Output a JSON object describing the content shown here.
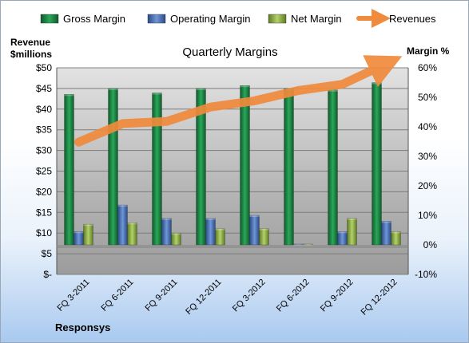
{
  "chart_data": {
    "type": "bar",
    "title": "Quarterly Margins",
    "company": "Responsys",
    "ylabel_left": "Revenue $millions",
    "ylabel_right": "Margin %",
    "categories": [
      "FQ 3-2011",
      "FQ 6-2011",
      "FQ 9-2011",
      "FQ 12-2011",
      "FQ 3-2012",
      "FQ 6-2012",
      "FQ 9-2012",
      "FQ 12-2012"
    ],
    "left_axis": {
      "min": 0,
      "max": 50,
      "step": 5,
      "ticks": [
        "$-",
        "$5",
        "$10",
        "$15",
        "$20",
        "$25",
        "$30",
        "$35",
        "$40",
        "$45",
        "$50"
      ]
    },
    "right_axis": {
      "min": -10,
      "max": 60,
      "step": 10,
      "ticks": [
        "-10%",
        "0%",
        "10%",
        "20%",
        "30%",
        "40%",
        "50%",
        "60%"
      ]
    },
    "series": [
      {
        "name": "Gross Margin",
        "axis": "right",
        "color": "#1e8a44",
        "values": [
          51,
          53,
          51.5,
          53,
          54,
          53,
          52.5,
          55
        ]
      },
      {
        "name": "Operating Margin",
        "axis": "right",
        "color": "#4d74b8",
        "values": [
          4.5,
          13.5,
          9,
          9,
          10,
          0.2,
          4.5,
          8
        ]
      },
      {
        "name": "Net Margin",
        "axis": "right",
        "color": "#8fb04a",
        "values": [
          7,
          7.5,
          4,
          5.5,
          5.5,
          0.2,
          9,
          4.5
        ]
      },
      {
        "name": "Revenues",
        "axis": "left",
        "type": "line",
        "color": "#f08a3c",
        "values": [
          32,
          36.5,
          37,
          40.5,
          42,
          44.5,
          46,
          51
        ]
      }
    ],
    "legend_position": "top",
    "grid": true
  }
}
